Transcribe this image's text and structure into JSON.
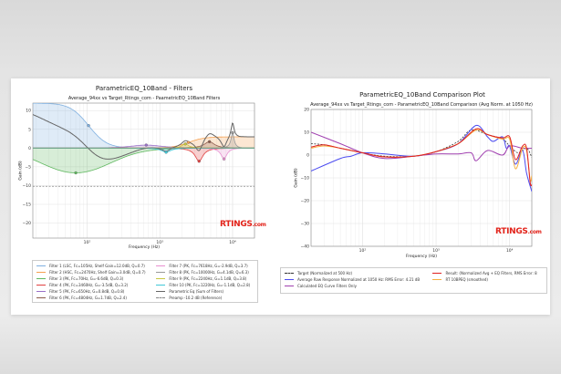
{
  "chart_data": [
    {
      "type": "line",
      "title": "ParametricEQ_10Band - Filters",
      "subtitle": "Average_94xx vs Target_Rtings_com - PaametricEQ_10Band Filters",
      "xlabel": "Frequency (Hz)",
      "ylabel": "Gain (dB)",
      "xscale": "log",
      "xlim": [
        18,
        20000
      ],
      "ylim": [
        -24,
        12
      ],
      "yticks": [
        10,
        5,
        0,
        -5,
        -10,
        -15,
        -20
      ],
      "xticks": [
        {
          "v": 100,
          "label": "10²"
        },
        {
          "v": 1000,
          "label": "10³"
        },
        {
          "v": 10000,
          "label": "10⁴"
        }
      ],
      "grid": true,
      "legend_position": "bottom",
      "preamp_db": -10.2,
      "filters": [
        {
          "type": "LSC",
          "fc": 105,
          "gain": 12.0,
          "q": 0.7,
          "color": "#7fb0e0",
          "label": "Filter 1 (LSC, Fc=105Hz, Shelf Gain=12.0dB, Q=0.7)"
        },
        {
          "type": "HSC",
          "fc": 2470,
          "gain": 3.0,
          "q": 0.7,
          "color": "#f5a050",
          "label": "Filter 2 (HSC, Fc=2470Hz, Shelf Gain=3.0dB, Q=0.7)"
        },
        {
          "type": "PK",
          "fc": 70,
          "gain": -6.6,
          "q": 0.3,
          "color": "#5fb85f",
          "label": "Filter 3 (PK, Fc=70Hz, G=-6.6dB, Q=0.3)"
        },
        {
          "type": "PK",
          "fc": 3460,
          "gain": -3.5,
          "q": 3.2,
          "color": "#e04040",
          "label": "Filter 4 (PK, Fc=3460Hz, G=-3.5dB, Q=3.2)"
        },
        {
          "type": "PK",
          "fc": 650,
          "gain": 0.8,
          "q": 0.8,
          "color": "#9a70c8",
          "label": "Filter 5 (PK, Fc=650Hz, G=0.8dB, Q=0.8)"
        },
        {
          "type": "PK",
          "fc": 4804,
          "gain": 1.7,
          "q": 2.4,
          "color": "#8c5a4a",
          "label": "Filter 6 (PK, Fc=4804Hz, G=1.7dB, Q=2.4)"
        },
        {
          "type": "PK",
          "fc": 7618,
          "gain": -2.9,
          "q": 3.7,
          "color": "#e890d0",
          "label": "Filter 7 (PK, Fc=7618Hz, G=-2.9dB, Q=3.7)"
        },
        {
          "type": "PK",
          "fc": 10000,
          "gain": 4.1,
          "q": 6.3,
          "color": "#999999",
          "label": "Filter 8 (PK, Fc=10000Hz, G=4.1dB, Q=6.3)"
        },
        {
          "type": "PK",
          "fc": 2240,
          "gain": 1.1,
          "q": 3.8,
          "color": "#c8c840",
          "label": "Filter 9 (PK, Fc=2240Hz, G=1.1dB, Q=3.8)"
        },
        {
          "type": "PK",
          "fc": 1220,
          "gain": -1.1,
          "q": 2.8,
          "color": "#40c8d8",
          "label": "Filter 10 (PK, Fc=1220Hz, G=-1.1dB, Q=2.8)"
        }
      ],
      "sum": {
        "color": "#666666",
        "label": "Parametric Eq (Sum of Filters)"
      },
      "preamp": {
        "color": "#888888",
        "label": "Preamp -10.2 dB (Reference)"
      }
    },
    {
      "type": "line",
      "title": "ParametricEQ_10Band Comparison Plot",
      "subtitle": "Average_94xx vs Target_Rtings_com - ParametricEQ_10Band Comparison (Avg Norm. at 1050 Hz)",
      "xlabel": "Frequency (Hz)",
      "ylabel": "Gain (dB)",
      "xscale": "log",
      "xlim": [
        20,
        20000
      ],
      "ylim": [
        -40,
        20
      ],
      "yticks": [
        20,
        10,
        0,
        -10,
        -20,
        -30,
        -40
      ],
      "xticks": [
        {
          "v": 100,
          "label": "10²"
        },
        {
          "v": 1000,
          "label": "10³"
        },
        {
          "v": 10000,
          "label": "10⁴"
        }
      ],
      "grid": true,
      "legend_position": "bottom",
      "series": [
        {
          "name": "Target (Normalized at 500 Hz)",
          "color": "#333333",
          "dash": true,
          "x": [
            20,
            30,
            50,
            100,
            200,
            500,
            1000,
            2000,
            3000,
            5000,
            8000,
            10000,
            13000,
            17000,
            20000
          ],
          "y": [
            5,
            4.5,
            3,
            1,
            -0.5,
            -0.5,
            1.5,
            6,
            11,
            9,
            7,
            4,
            1,
            3,
            -1
          ]
        },
        {
          "name": "Average Raw Response Normalized at 1050 Hz: RMS Error: 4.21 dB",
          "color": "#4a4af0",
          "x": [
            20,
            50,
            70,
            100,
            200,
            500,
            1000,
            2000,
            3500,
            5000,
            6000,
            8000,
            9000,
            10000,
            12000,
            15000,
            17000,
            20000
          ],
          "y": [
            -7,
            -1.5,
            -0.5,
            1,
            0.5,
            -0.5,
            1.5,
            5,
            13,
            8,
            6,
            8,
            3,
            4,
            -4,
            2,
            -8,
            -16
          ]
        },
        {
          "name": "Calculated EQ Curve Filters Only",
          "color": "#a040b0",
          "x": [
            20,
            50,
            100,
            200,
            500,
            1000,
            2000,
            3000,
            3500,
            5000,
            8000,
            10000,
            15000,
            20000
          ],
          "y": [
            10,
            5,
            1,
            -1.5,
            -0.5,
            0.5,
            0.5,
            1,
            -2.5,
            2,
            0,
            4,
            3,
            3
          ]
        },
        {
          "name": "RT 10BPEQ (smoothed)",
          "color": "#f5b040",
          "x": [
            20,
            30,
            50,
            100,
            200,
            500,
            1000,
            2000,
            3500,
            5000,
            8000,
            10000,
            12000,
            15000,
            17000,
            19000,
            20000
          ],
          "y": [
            3,
            4,
            3,
            1,
            -0.8,
            -0.5,
            1.5,
            5,
            11,
            9,
            7,
            7,
            -6,
            3,
            2,
            -11,
            -9
          ]
        },
        {
          "name": "Result: (Normalized Avg + EQ Filters, RMS Error: 8",
          "color": "#e02020",
          "x": [
            20,
            30,
            50,
            100,
            200,
            500,
            1000,
            2000,
            3500,
            5000,
            8000,
            10000,
            12000,
            15000,
            17000,
            19000,
            20000
          ],
          "y": [
            3.5,
            4.5,
            3,
            1,
            -0.8,
            -0.5,
            1.5,
            5,
            11.5,
            9,
            7.5,
            8,
            -2,
            4,
            3,
            -12,
            -13
          ]
        }
      ]
    }
  ],
  "logo": "RTINGS.com"
}
